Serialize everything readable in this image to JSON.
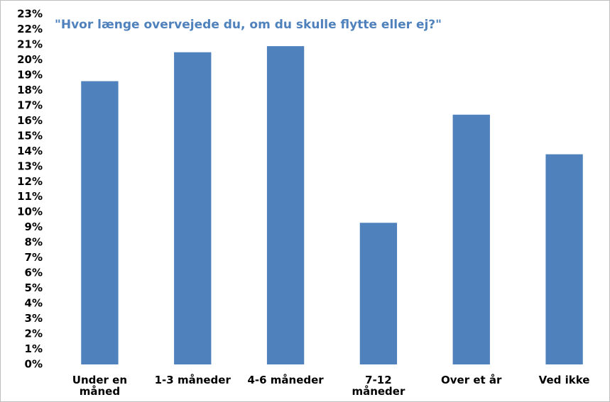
{
  "chart_data": {
    "type": "bar",
    "title": "\"Hvor længe overvejede du, om du skulle flytte eller ej?\"",
    "categories": [
      "Under en\nmåned",
      "1-3 måneder",
      "4-6 måneder",
      "7-12\nmåneder",
      "Over et år",
      "Ved ikke"
    ],
    "values": [
      18.6,
      20.5,
      20.9,
      9.3,
      16.4,
      13.8
    ],
    "color": "#4f81bd",
    "ylim": [
      0,
      23
    ],
    "yticks": [
      {
        "value": 0,
        "label": "0%"
      },
      {
        "value": 1,
        "label": "1%"
      },
      {
        "value": 2,
        "label": "2%"
      },
      {
        "value": 3,
        "label": "3%"
      },
      {
        "value": 4,
        "label": "4%"
      },
      {
        "value": 5,
        "label": "5%"
      },
      {
        "value": 6,
        "label": "6%"
      },
      {
        "value": 7,
        "label": "7%"
      },
      {
        "value": 8,
        "label": "8%"
      },
      {
        "value": 9,
        "label": "9%"
      },
      {
        "value": 10,
        "label": "10%"
      },
      {
        "value": 11,
        "label": "11%"
      },
      {
        "value": 12,
        "label": "12%"
      },
      {
        "value": 13,
        "label": "13%"
      },
      {
        "value": 14,
        "label": "14%"
      },
      {
        "value": 15,
        "label": "15%"
      },
      {
        "value": 16,
        "label": "16%"
      },
      {
        "value": 17,
        "label": "17%"
      },
      {
        "value": 18,
        "label": "18%"
      },
      {
        "value": 19,
        "label": "19%"
      },
      {
        "value": 20,
        "label": "20%"
      },
      {
        "value": 21,
        "label": "21%"
      },
      {
        "value": 22,
        "label": "22%"
      },
      {
        "value": 23,
        "label": "23%"
      }
    ],
    "grid": false
  }
}
